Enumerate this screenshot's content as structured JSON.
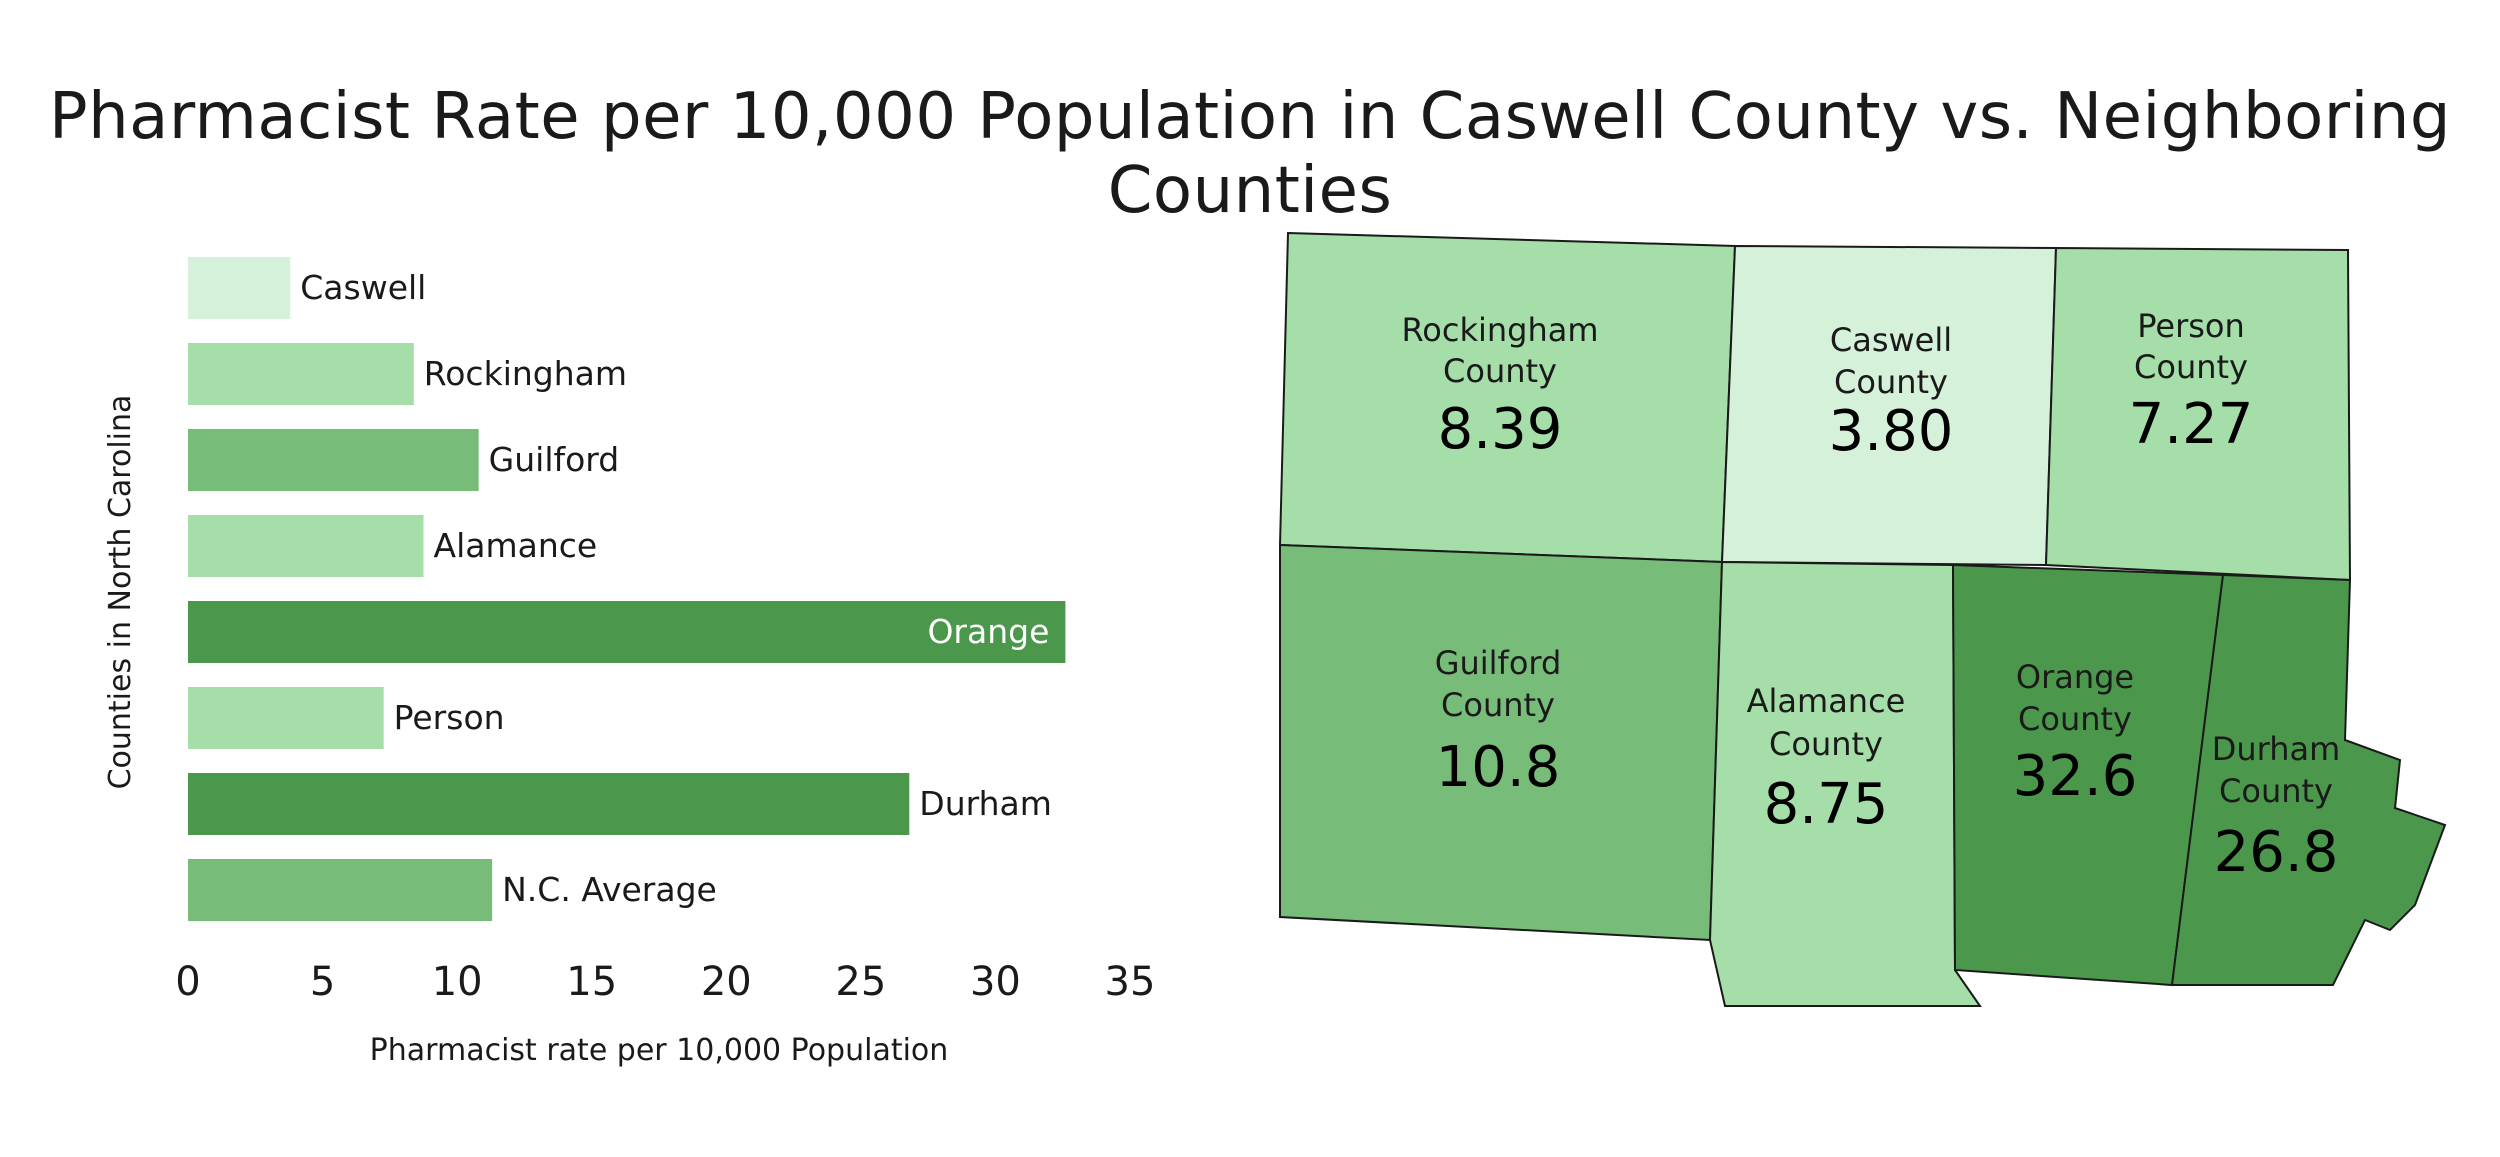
{
  "chart_data": {
    "title": "Pharmacist Rate per 10,000 Population in Caswell County vs. Neighboring Counties",
    "bar_chart": {
      "type": "bar",
      "orientation": "horizontal",
      "categories": [
        "Caswell",
        "Rockingham",
        "Guilford",
        "Alamance",
        "Orange",
        "Person",
        "Durham",
        "N.C. Average"
      ],
      "values": [
        3.8,
        8.39,
        10.8,
        8.75,
        32.6,
        7.27,
        26.8,
        11.3
      ],
      "colors": [
        "#d6f1da",
        "#a5dea8",
        "#78bc79",
        "#a5dea8",
        "#4b984d",
        "#a5dea8",
        "#4b984d",
        "#78bc79"
      ],
      "xlim": [
        0,
        35
      ],
      "xticks": [
        "0",
        "5",
        "10",
        "15",
        "20",
        "25",
        "30",
        "35"
      ],
      "xlabel": "Pharmacist rate per 10,000 Population",
      "ylabel": "Counties in North Carolina",
      "label_inside": [
        "Orange"
      ]
    },
    "map": {
      "type": "choropleth",
      "regions": [
        {
          "key": "rockingham",
          "name": "Rockingham County",
          "line1": "Rockingham",
          "line2": "County",
          "value": "8.39",
          "color": "#a5dea8"
        },
        {
          "key": "caswell",
          "name": "Caswell County",
          "line1": "Caswell",
          "line2": "County",
          "value": "3.80",
          "color": "#d6f1da"
        },
        {
          "key": "person",
          "name": "Person County",
          "line1": "Person",
          "line2": "County",
          "value": "7.27",
          "color": "#a5dea8"
        },
        {
          "key": "guilford",
          "name": "Guilford County",
          "line1": "Guilford",
          "line2": "County",
          "value": "10.8",
          "color": "#78bc79"
        },
        {
          "key": "alamance",
          "name": "Alamance County",
          "line1": "Alamance",
          "line2": "County",
          "value": "8.75",
          "color": "#a5dea8"
        },
        {
          "key": "orange",
          "name": "Orange County",
          "line1": "Orange",
          "line2": "County",
          "value": "32.6",
          "color": "#4b984d"
        },
        {
          "key": "durham",
          "name": "Durham County",
          "line1": "Durham",
          "line2": "County",
          "value": "26.8",
          "color": "#4b984d"
        }
      ]
    }
  }
}
